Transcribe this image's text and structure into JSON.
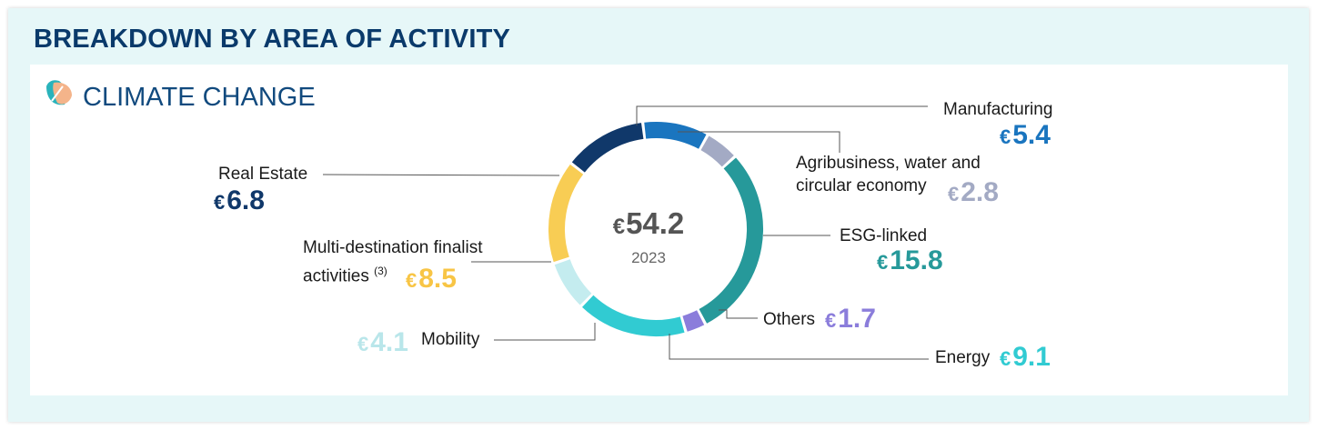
{
  "header": {
    "title": "BREAKDOWN BY AREA OF ACTIVITY"
  },
  "panel": {
    "subtitle": "CLIMATE CHANGE",
    "icon": "leaf-icon"
  },
  "chart_data": {
    "type": "pie",
    "variant": "donut",
    "total": "54.2",
    "year": "2023",
    "currency": "€",
    "segments": [
      {
        "name": "Manufacturing",
        "value": 5.4,
        "color": "#1a75bf"
      },
      {
        "name": "Agribusiness, water and circular economy",
        "value": 2.8,
        "color": "#a3aac4"
      },
      {
        "name": "ESG-linked",
        "value": 15.8,
        "color": "#26999a"
      },
      {
        "name": "Others",
        "value": 1.7,
        "color": "#8b7ddb"
      },
      {
        "name": "Energy",
        "value": 9.1,
        "color": "#31cbd2"
      },
      {
        "name": "Mobility",
        "value": 4.1,
        "color": "#c4ecef"
      },
      {
        "name": "Multi-destination finalist activities",
        "value": 8.5,
        "color": "#f8cd54"
      },
      {
        "name": "Real Estate",
        "value": 6.8,
        "color": "#10386a"
      }
    ],
    "labels": {
      "manufacturing": {
        "text": "Manufacturing",
        "value": "5.4"
      },
      "agri_line1": "Agribusiness, water and",
      "agri_line2": "circular economy",
      "agri_value": "2.8",
      "esg": {
        "text": "ESG-linked",
        "value": "15.8"
      },
      "others": {
        "text": "Others",
        "value": "1.7"
      },
      "energy": {
        "text": "Energy",
        "value": "9.1"
      },
      "mobility": {
        "text": "Mobility",
        "value": "4.1"
      },
      "multi_line1": "Multi-destination finalist",
      "multi_line2": "activities",
      "multi_note": "(3)",
      "multi_value": "8.5",
      "realestate": {
        "text": "Real Estate",
        "value": "6.8"
      }
    }
  }
}
